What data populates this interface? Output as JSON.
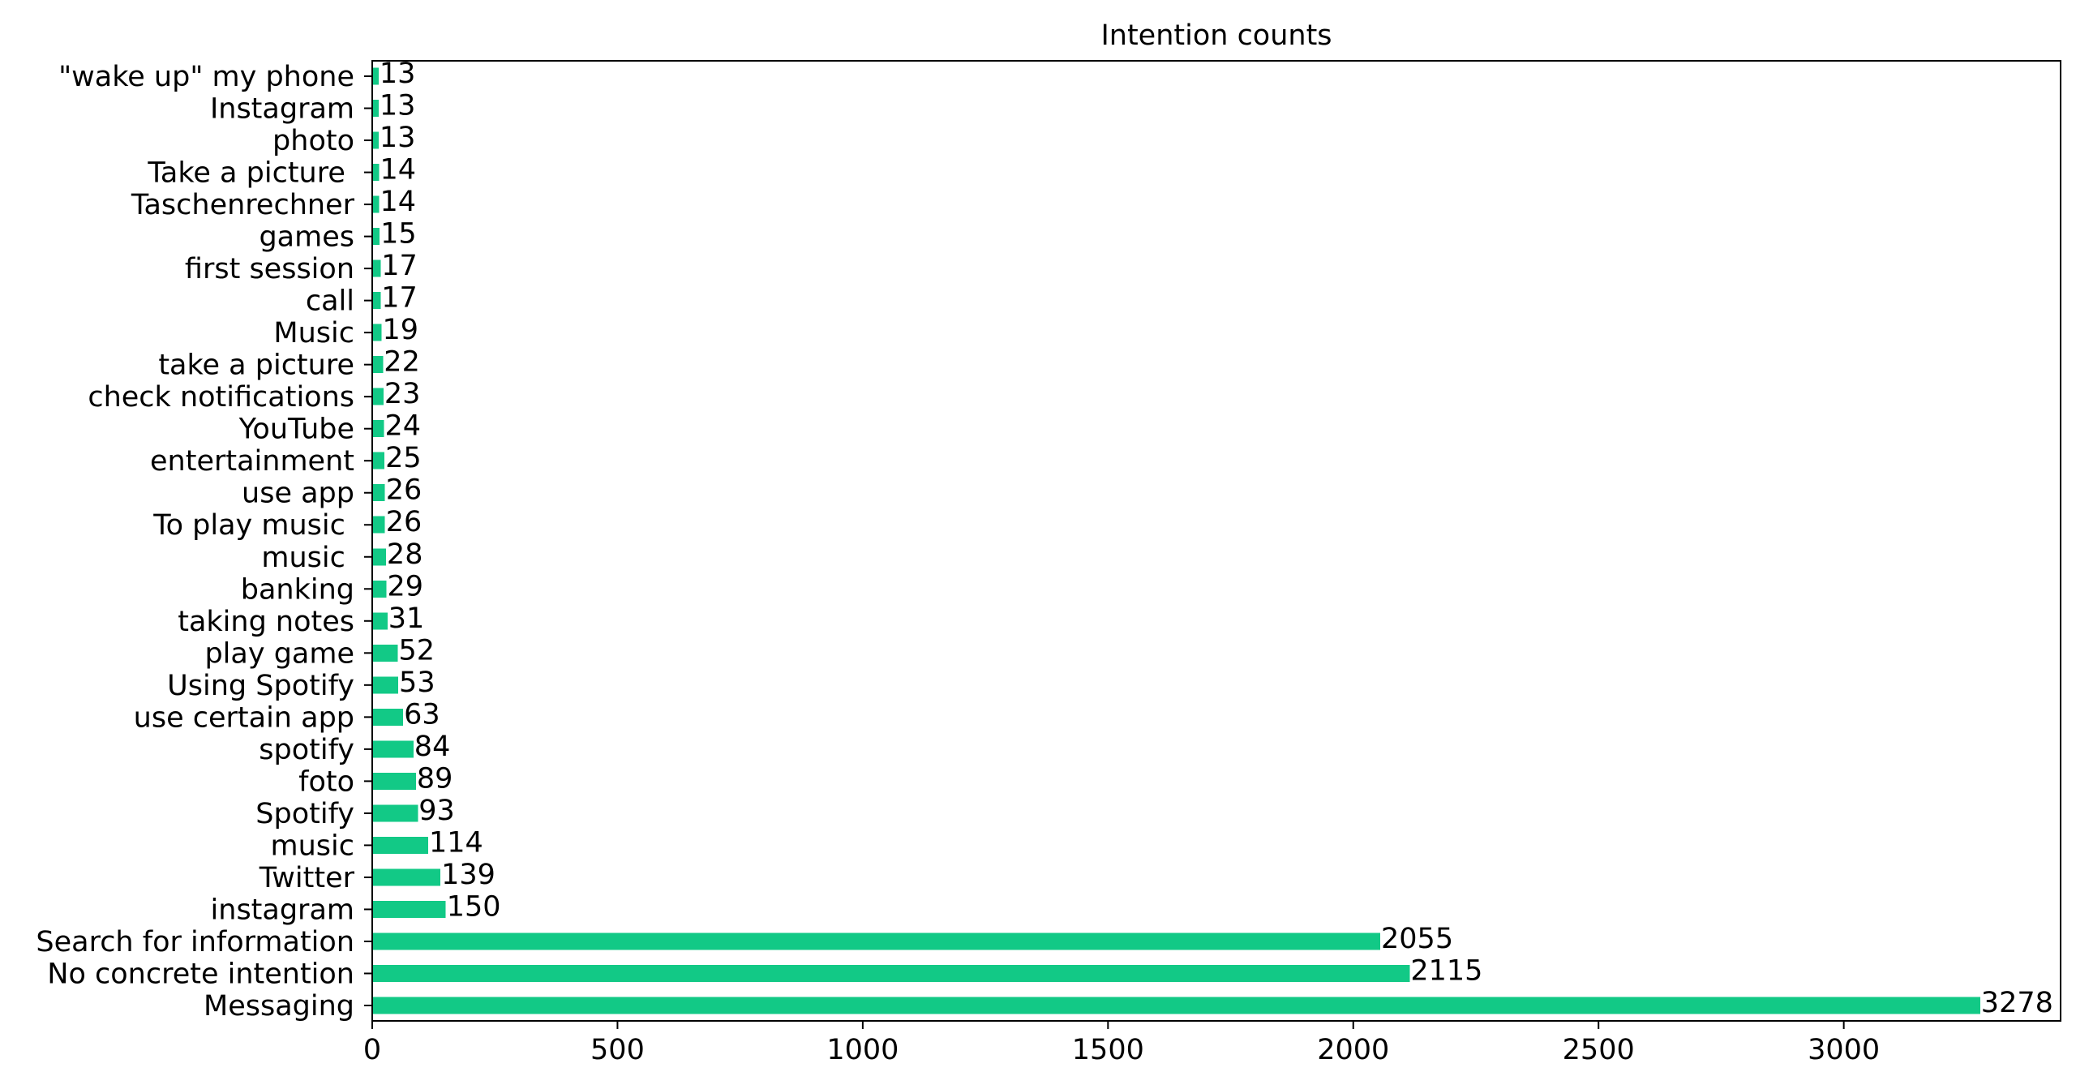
{
  "chart_data": {
    "type": "bar",
    "orientation": "horizontal",
    "title": "Intention counts",
    "xlabel": "",
    "ylabel": "",
    "xlim": [
      0,
      3442
    ],
    "xticks": [
      0,
      500,
      1000,
      1500,
      2000,
      2500,
      3000
    ],
    "grid": false,
    "bar_color": "#12c986",
    "categories": [
      "Messaging",
      "No concrete intention",
      "Search for information",
      "instagram",
      "Twitter",
      "music",
      "Spotify",
      "foto",
      "spotify",
      "use certain app",
      "Using Spotify",
      "play game",
      "taking notes",
      "banking",
      "music ",
      "To play music ",
      "use app",
      "entertainment",
      "YouTube",
      "check notifications",
      "take a picture",
      "Music",
      "call",
      "first session",
      "games",
      "Taschenrechner",
      "Take a picture ",
      "photo",
      "Instagram",
      "\"wake up\" my phone"
    ],
    "values": [
      3278,
      2115,
      2055,
      150,
      139,
      114,
      93,
      89,
      84,
      63,
      53,
      52,
      31,
      29,
      28,
      26,
      26,
      25,
      24,
      23,
      22,
      19,
      17,
      17,
      15,
      14,
      14,
      13,
      13,
      13
    ]
  }
}
